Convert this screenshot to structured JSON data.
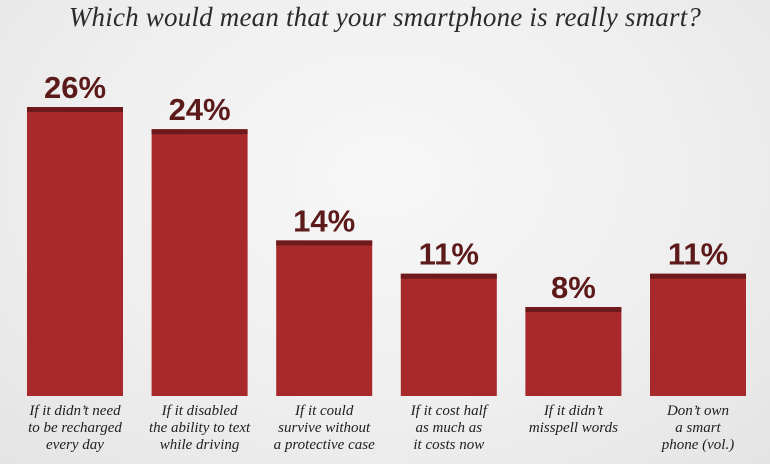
{
  "chart_data": {
    "type": "bar",
    "title": "Which would mean that your smartphone is really smart?",
    "categories": [
      [
        "If it didn’t need",
        "to be recharged",
        "every day"
      ],
      [
        "If it disabled",
        "the ability to text",
        "while driving"
      ],
      [
        "If it could",
        "survive without",
        "a protective case"
      ],
      [
        "If it cost half",
        "as much as",
        "it costs now"
      ],
      [
        "If it didn’t",
        "misspell words"
      ],
      [
        "Don’t own",
        "a smart",
        "phone (vol.)"
      ]
    ],
    "values": [
      26,
      24,
      14,
      11,
      8,
      11
    ],
    "value_labels": [
      "26%",
      "24%",
      "14%",
      "11%",
      "8%",
      "11%"
    ],
    "ylim": [
      0,
      26
    ],
    "grid": false,
    "legend": "none"
  },
  "colors": {
    "bar": "#a8292c",
    "bar_cap": "#6e1a1c",
    "value_text": "#5c1a1a",
    "category_text": "#1e1e1e",
    "title_text": "#2b2b2b"
  }
}
